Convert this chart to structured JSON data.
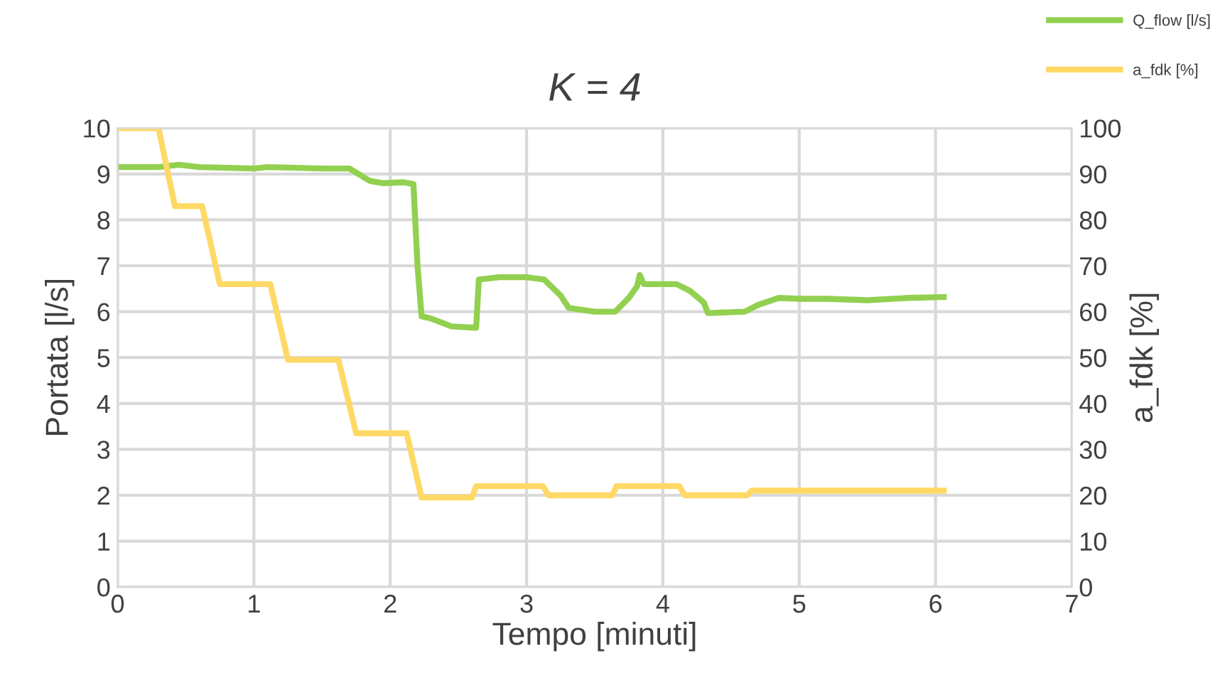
{
  "chart_data": {
    "type": "line",
    "title": "K = 4",
    "xlabel": "Tempo [minuti]",
    "ylabel": "Portata [l/s]",
    "y2label": "a_fdk [%]",
    "xlim": [
      0,
      7
    ],
    "xticks": [
      0,
      1,
      2,
      3,
      4,
      5,
      6,
      7
    ],
    "ylim": [
      0,
      10
    ],
    "yticks": [
      0,
      1,
      2,
      3,
      4,
      5,
      6,
      7,
      8,
      9,
      10
    ],
    "y2lim": [
      0,
      100
    ],
    "y2ticks": [
      0,
      10,
      20,
      30,
      40,
      50,
      60,
      70,
      80,
      90,
      100
    ],
    "grid": true,
    "legend": "top right",
    "series": [
      {
        "name": "Q_flow [l/s]",
        "color": "#92d050",
        "x": [
          0,
          0.3,
          0.45,
          0.6,
          1.0,
          1.1,
          1.5,
          1.7,
          1.85,
          1.95,
          2.1,
          2.17,
          2.2,
          2.23,
          2.3,
          2.45,
          2.63,
          2.65,
          2.8,
          3.0,
          3.13,
          3.25,
          3.31,
          3.5,
          3.65,
          3.75,
          3.81,
          3.83,
          3.86,
          4.0,
          4.1,
          4.2,
          4.3,
          4.33,
          4.6,
          4.7,
          4.85,
          5.0,
          5.2,
          5.5,
          5.8,
          6.06
        ],
        "values": [
          9.15,
          9.15,
          9.2,
          9.15,
          9.12,
          9.15,
          9.12,
          9.12,
          8.85,
          8.8,
          8.82,
          8.78,
          7.0,
          5.9,
          5.85,
          5.68,
          5.65,
          6.7,
          6.75,
          6.75,
          6.7,
          6.35,
          6.08,
          6.0,
          6.0,
          6.3,
          6.55,
          6.8,
          6.6,
          6.6,
          6.6,
          6.45,
          6.2,
          5.97,
          6.0,
          6.15,
          6.3,
          6.28,
          6.28,
          6.25,
          6.3,
          6.32
        ]
      },
      {
        "name": "a_fdk [%]",
        "color": "#ffd966",
        "axis": "y2",
        "x": [
          0,
          0.3,
          0.42,
          0.62,
          0.75,
          1.12,
          1.25,
          1.62,
          1.75,
          2.12,
          2.23,
          2.6,
          2.63,
          3.12,
          3.16,
          3.63,
          3.66,
          4.12,
          4.16,
          4.62,
          4.65,
          6.06
        ],
        "values": [
          100,
          100,
          83,
          83,
          66,
          66,
          49.5,
          49.5,
          33.5,
          33.5,
          19.5,
          19.5,
          22,
          22,
          20,
          20,
          22,
          22,
          20,
          20,
          21,
          21
        ]
      }
    ]
  }
}
